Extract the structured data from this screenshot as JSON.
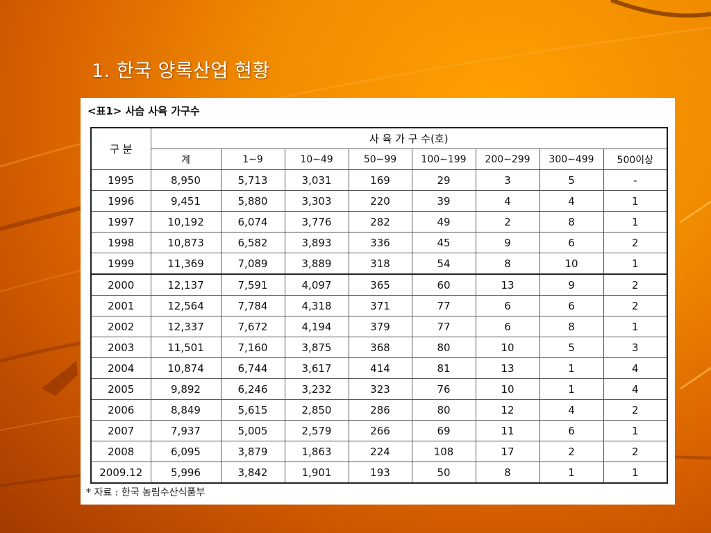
{
  "slide": {
    "title": "1. 한국 양록산업 현황"
  },
  "table": {
    "caption": "<표1> 사슴 사육 가구수",
    "header_group": "구 분",
    "header_span": "사 육 가 구 수(호)",
    "columns": [
      "계",
      "1∼9",
      "10∼49",
      "50∼99",
      "100∼199",
      "200∼299",
      "300∼499",
      "500이상"
    ],
    "rows": [
      [
        "1995",
        "8,950",
        "5,713",
        "3,031",
        "169",
        "29",
        "3",
        "5",
        "-"
      ],
      [
        "1996",
        "9,451",
        "5,880",
        "3,303",
        "220",
        "39",
        "4",
        "4",
        "1"
      ],
      [
        "1997",
        "10,192",
        "6,074",
        "3,776",
        "282",
        "49",
        "2",
        "8",
        "1"
      ],
      [
        "1998",
        "10,873",
        "6,582",
        "3,893",
        "336",
        "45",
        "9",
        "6",
        "2"
      ],
      [
        "1999",
        "11,369",
        "7,089",
        "3,889",
        "318",
        "54",
        "8",
        "10",
        "1"
      ],
      [
        "2000",
        "12,137",
        "7,591",
        "4,097",
        "365",
        "60",
        "13",
        "9",
        "2"
      ],
      [
        "2001",
        "12,564",
        "7,784",
        "4,318",
        "371",
        "77",
        "6",
        "6",
        "2"
      ],
      [
        "2002",
        "12,337",
        "7,672",
        "4,194",
        "379",
        "77",
        "6",
        "8",
        "1"
      ],
      [
        "2003",
        "11,501",
        "7,160",
        "3,875",
        "368",
        "80",
        "10",
        "5",
        "3"
      ],
      [
        "2004",
        "10,874",
        "6,744",
        "3,617",
        "414",
        "81",
        "13",
        "1",
        "4"
      ],
      [
        "2005",
        "9,892",
        "6,246",
        "3,232",
        "323",
        "76",
        "10",
        "1",
        "4"
      ],
      [
        "2006",
        "8,849",
        "5,615",
        "2,850",
        "286",
        "80",
        "12",
        "4",
        "2"
      ],
      [
        "2007",
        "7,937",
        "5,005",
        "2,579",
        "266",
        "69",
        "11",
        "6",
        "1"
      ],
      [
        "2008",
        "6,095",
        "3,879",
        "1,863",
        "224",
        "108",
        "17",
        "2",
        "2"
      ],
      [
        "2009.12",
        "5,996",
        "3,842",
        "1,901",
        "193",
        "50",
        "8",
        "1",
        "1"
      ]
    ],
    "footnote": "* 자료 : 한국 농림수산식품부"
  },
  "colors": {
    "background_light": "#ffa000",
    "background_dark": "#a33a00",
    "title_text": "#ffffff"
  }
}
